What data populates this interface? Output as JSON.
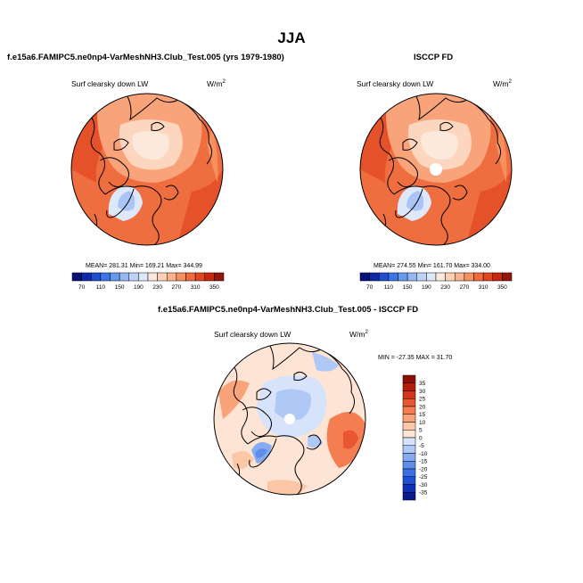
{
  "season": "JJA",
  "panels": {
    "model": {
      "title": "f.e15a6.FAMIPC5.ne0np4-VarMeshNH3.Club_Test.005 (yrs 1979-1980)",
      "variable": "Surf clearsky down LW",
      "units_base": "W/m",
      "units_exp": "2",
      "stats": "MEAN= 281.31  Min= 169.21  Max= 344.99"
    },
    "obs": {
      "title": "ISCCP FD",
      "variable": "Surf clearsky down LW",
      "units_base": "W/m",
      "units_exp": "2",
      "stats": "MEAN= 274.55  Min= 161.70  Max= 334.00"
    },
    "diff": {
      "title": "f.e15a6.FAMIPC5.ne0np4-VarMeshNH3.Club_Test.005 - ISCCP FD",
      "variable": "Surf clearsky down LW",
      "units_base": "W/m",
      "units_exp": "2",
      "stats": "MIN = -27.35 MAX =  31.70"
    }
  },
  "chart_data": [
    {
      "type": "heatmap",
      "projection": "north polar stereographic",
      "title": "f.e15a6.FAMIPC5.ne0np4-VarMeshNH3.Club_Test.005 (yrs 1979-1980)",
      "variable": "Surf clearsky down LW",
      "units": "W/m2",
      "mean": 281.31,
      "min": 169.21,
      "max": 344.99,
      "colorbar": {
        "orientation": "horizontal",
        "levels": [
          70,
          90,
          110,
          130,
          150,
          170,
          190,
          210,
          230,
          250,
          270,
          290,
          310,
          330,
          350
        ],
        "tick_labels": [
          "70",
          "110",
          "150",
          "190",
          "230",
          "270",
          "310",
          "350"
        ],
        "colors": [
          "#08107a",
          "#0c2aa8",
          "#1f4fd0",
          "#3c76e6",
          "#6698ee",
          "#93b7f3",
          "#bcd2f7",
          "#dde8fa",
          "#fde9dc",
          "#fcd1b6",
          "#fbb38c",
          "#f7905f",
          "#f06a3c",
          "#e3461f",
          "#c5280f",
          "#96150a"
        ]
      }
    },
    {
      "type": "heatmap",
      "projection": "north polar stereographic",
      "title": "ISCCP FD",
      "variable": "Surf clearsky down LW",
      "units": "W/m2",
      "mean": 274.55,
      "min": 161.7,
      "max": 334.0,
      "colorbar": {
        "orientation": "horizontal",
        "levels": [
          70,
          90,
          110,
          130,
          150,
          170,
          190,
          210,
          230,
          250,
          270,
          290,
          310,
          330,
          350
        ],
        "tick_labels": [
          "70",
          "110",
          "150",
          "190",
          "230",
          "270",
          "310",
          "350"
        ],
        "colors": [
          "#08107a",
          "#0c2aa8",
          "#1f4fd0",
          "#3c76e6",
          "#6698ee",
          "#93b7f3",
          "#bcd2f7",
          "#dde8fa",
          "#fde9dc",
          "#fcd1b6",
          "#fbb38c",
          "#f7905f",
          "#f06a3c",
          "#e3461f",
          "#c5280f",
          "#96150a"
        ]
      }
    },
    {
      "type": "heatmap",
      "projection": "north polar stereographic",
      "title": "f.e15a6.FAMIPC5.ne0np4-VarMeshNH3.Club_Test.005 - ISCCP FD",
      "variable": "Surf clearsky down LW",
      "units": "W/m2",
      "min": -27.35,
      "max": 31.7,
      "colorbar": {
        "orientation": "vertical",
        "levels": [
          -35,
          -30,
          -25,
          -20,
          -15,
          -10,
          -5,
          0,
          5,
          10,
          15,
          20,
          25,
          30,
          35
        ],
        "tick_labels": [
          "35",
          "30",
          "25",
          "20",
          "15",
          "10",
          "5",
          "0",
          "-5",
          "-10",
          "-15",
          "-20",
          "-25",
          "-30",
          "-35"
        ],
        "colors": [
          "#0a1a8c",
          "#1230b4",
          "#1f4fd6",
          "#3c6fe4",
          "#5f8eea",
          "#86abf0",
          "#afc8f5",
          "#d6e3fa",
          "#fde4d4",
          "#fcc7a6",
          "#f9a37a",
          "#f47d52",
          "#e85632",
          "#d3341a",
          "#b41c0c",
          "#8c1008"
        ]
      }
    }
  ]
}
